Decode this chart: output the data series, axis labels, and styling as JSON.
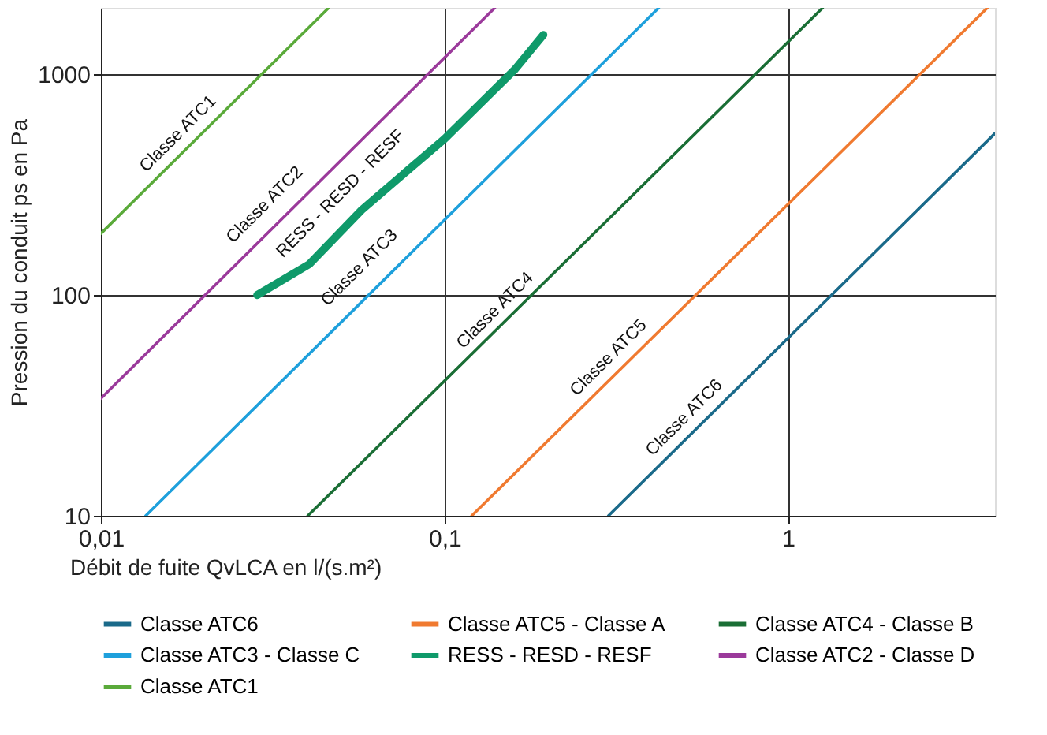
{
  "chart_data": {
    "type": "line",
    "xlabel": "Débit de fuite QvLCA en l/(s.m²)",
    "ylabel": "Pression du conduit ps en Pa",
    "log": "xy",
    "grid": true,
    "legend": "bottom",
    "xlim": [
      0.01,
      4
    ],
    "ylim": [
      10,
      2000
    ],
    "xticks": [
      {
        "value": 0.01,
        "label": "0,01"
      },
      {
        "value": 0.1,
        "label": "0,1"
      },
      1
    ],
    "yticks": [
      10,
      100,
      {
        "value": 1000,
        "label": "1000"
      }
    ],
    "series": [
      {
        "name": "Classe ATC6",
        "color": "#1a6a8a",
        "x": [
          0.3,
          4
        ],
        "values": [
          10,
          540
        ]
      },
      {
        "name": "Classe ATC5 - Classe A",
        "color": "#f07a30",
        "x": [
          0.12,
          3.8
        ],
        "values": [
          10,
          2000
        ]
      },
      {
        "name": "Classe ATC4 - Classe B",
        "color": "#1a6e35",
        "x": [
          0.04,
          1.26
        ],
        "values": [
          10,
          2000
        ]
      },
      {
        "name": "Classe ATC3 - Classe C",
        "color": "#1ea0dc",
        "x": [
          0.0135,
          0.42
        ],
        "values": [
          10,
          2000
        ]
      },
      {
        "name": "RESS - RESD - RESF",
        "color": "#0f9a6a",
        "x": [
          0.0285,
          0.0404,
          0.0574,
          0.1,
          0.16,
          0.194
        ],
        "values": [
          100,
          138,
          243,
          510,
          1050,
          1510
        ]
      },
      {
        "name": "Classe ATC2 - Classe D",
        "color": "#9b3a9b",
        "x": [
          0.01,
          0.14
        ],
        "values": [
          34,
          2000
        ]
      },
      {
        "name": "Classe ATC1",
        "color": "#5aaa3a",
        "x": [
          0.01,
          0.046
        ],
        "values": [
          190,
          2000
        ]
      }
    ],
    "annotations": [
      "Classe ATC1",
      "Classe ATC2",
      "RESS - RESD - RESF",
      "Classe ATC3",
      "Classe ATC4",
      "Classe ATC5",
      "Classe ATC6"
    ]
  }
}
